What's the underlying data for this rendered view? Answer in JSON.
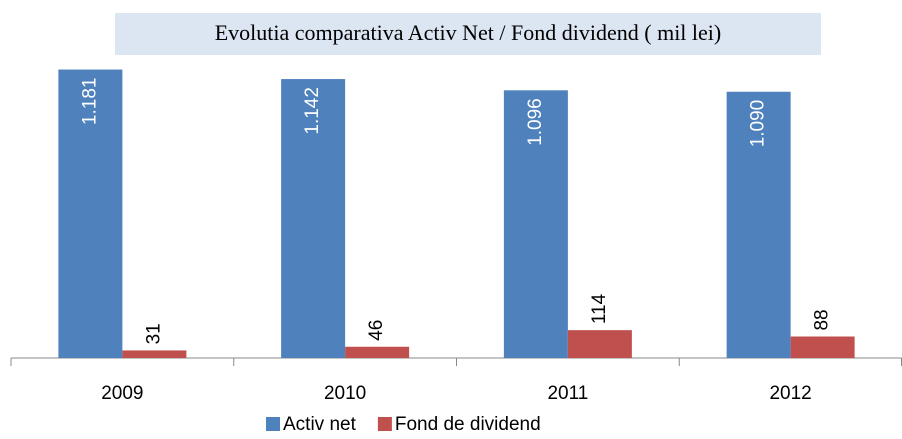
{
  "chart_data": {
    "type": "bar",
    "title": "Evolutia comparativa Activ Net / Fond dividend ( mil lei)",
    "categories": [
      "2009",
      "2010",
      "2011",
      "2012"
    ],
    "series": [
      {
        "name": "Activ net",
        "color": "#4f81bd",
        "values": [
          1181,
          1142,
          1096,
          1090
        ],
        "value_labels": [
          "1.181",
          "1.142",
          "1.096",
          "1.090"
        ]
      },
      {
        "name": "Fond de dividend",
        "color": "#c0504d",
        "values": [
          31,
          46,
          114,
          88
        ]
      }
    ],
    "legend": "bottom"
  }
}
